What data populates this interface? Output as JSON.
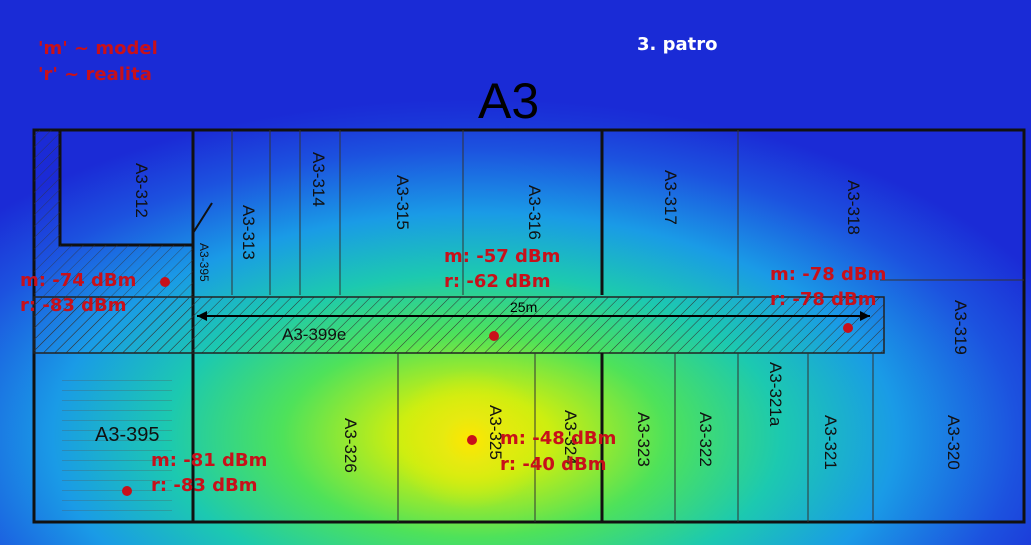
{
  "header": {
    "building": "A3",
    "floor": "3. patro"
  },
  "legend": [
    "'m' ~ model",
    "'r' ~ realita"
  ],
  "scale_bar": "25m",
  "rooms": [
    "A3-312",
    "A3-313",
    "A3-314",
    "A3-315",
    "A3-316",
    "A3-317",
    "A3-318",
    "A3-319",
    "A3-395",
    "A3-399e",
    "A3-395",
    "A3-326",
    "A3-325",
    "A3-324",
    "A3-323",
    "A3-322",
    "A3-321a",
    "A3-321",
    "A3-320"
  ],
  "measurements": [
    {
      "model": "m: -74 dBm",
      "real": "r: -83 dBm"
    },
    {
      "model": "m: -57 dBm",
      "real": "r: -62 dBm"
    },
    {
      "model": "m: -78 dBm",
      "real": "r: -78 dBm"
    },
    {
      "model": "m: -48 dBm",
      "real": "r: -40 dBm"
    },
    {
      "model": "m: -81 dBm",
      "real": "r: -83 dBm"
    }
  ],
  "colors": {
    "heat_low": "#1b2bd6",
    "heat_high": "#ffe600",
    "marker": "#c8101a"
  }
}
